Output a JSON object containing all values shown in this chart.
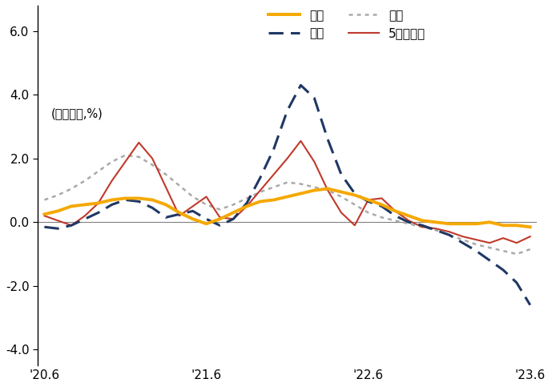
{
  "title": "",
  "ylabel": "(전월대비,%)",
  "ylim": [
    -4.5,
    6.8
  ],
  "yticks": [
    -4.0,
    -2.0,
    0.0,
    2.0,
    4.0,
    6.0
  ],
  "xtick_labels": [
    "'20.6",
    "'21.6",
    "'22.6",
    "'23.6"
  ],
  "background_color": "#ffffff",
  "n_points": 37,
  "series": {
    "서울": {
      "color": "#F5A800",
      "linewidth": 2.8,
      "linestyle": "solid",
      "zorder": 5,
      "data": [
        0.25,
        0.35,
        0.5,
        0.55,
        0.6,
        0.7,
        0.75,
        0.75,
        0.7,
        0.55,
        0.3,
        0.1,
        -0.05,
        0.1,
        0.3,
        0.5,
        0.65,
        0.7,
        0.8,
        0.9,
        1.0,
        1.05,
        0.95,
        0.85,
        0.7,
        0.55,
        0.35,
        0.2,
        0.05,
        0.0,
        -0.05,
        -0.05,
        -0.05,
        0.0,
        -0.1,
        -0.1,
        -0.15
      ]
    },
    "인천": {
      "color": "#1F3864",
      "linewidth": 2.2,
      "linestyle": "dashed",
      "zorder": 4,
      "data": [
        -0.15,
        -0.2,
        -0.1,
        0.1,
        0.3,
        0.55,
        0.7,
        0.65,
        0.45,
        0.15,
        0.25,
        0.35,
        0.1,
        -0.1,
        0.1,
        0.6,
        1.4,
        2.3,
        3.5,
        4.3,
        3.9,
        2.6,
        1.5,
        0.9,
        0.65,
        0.5,
        0.2,
        0.0,
        -0.1,
        -0.25,
        -0.4,
        -0.65,
        -0.9,
        -1.2,
        -1.5,
        -1.9,
        -2.6
      ]
    },
    "경기": {
      "color": "#AAAAAA",
      "linewidth": 1.8,
      "linestyle": "dotted",
      "zorder": 3,
      "data": [
        0.7,
        0.85,
        1.05,
        1.3,
        1.6,
        1.9,
        2.1,
        2.05,
        1.8,
        1.5,
        1.15,
        0.8,
        0.55,
        0.4,
        0.55,
        0.75,
        0.95,
        1.1,
        1.25,
        1.2,
        1.1,
        1.0,
        0.8,
        0.55,
        0.3,
        0.15,
        0.05,
        -0.05,
        -0.15,
        -0.25,
        -0.4,
        -0.55,
        -0.7,
        -0.8,
        -0.9,
        -1.0,
        -0.85
      ]
    },
    "5개광역시": {
      "color": "#C0392B",
      "linewidth": 1.5,
      "linestyle": "solid",
      "zorder": 3,
      "data": [
        0.2,
        0.05,
        -0.1,
        0.2,
        0.6,
        1.3,
        1.9,
        2.5,
        2.0,
        1.1,
        0.2,
        0.5,
        0.8,
        0.15,
        0.1,
        0.5,
        1.0,
        1.5,
        2.0,
        2.55,
        1.9,
        1.0,
        0.3,
        -0.1,
        0.7,
        0.75,
        0.35,
        0.05,
        -0.15,
        -0.2,
        -0.3,
        -0.45,
        -0.55,
        -0.65,
        -0.5,
        -0.65,
        -0.45
      ]
    }
  }
}
